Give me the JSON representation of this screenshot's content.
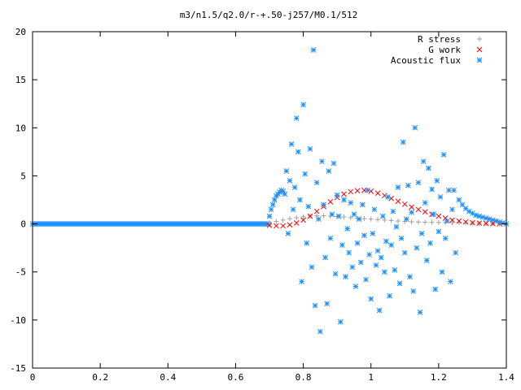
{
  "chart_data": {
    "type": "scatter",
    "title": "m3/n1.5/q2.0/r-+.50-j257/M0.1/512",
    "xlabel": "",
    "ylabel": "",
    "xlim": [
      0,
      1.4
    ],
    "ylim": [
      -15,
      20
    ],
    "x_ticks": [
      "0",
      "0.2",
      "0.4",
      "0.6",
      "0.8",
      "1",
      "1.2",
      "1.4"
    ],
    "y_ticks": [
      "-15",
      "-10",
      "-5",
      "0",
      "5",
      "10",
      "15",
      "20"
    ],
    "grid": false,
    "legend_position": "top-right",
    "series": [
      {
        "name": "R stress",
        "marker": "+",
        "color": "#a0a0a0",
        "x": [
          0.7,
          0.72,
          0.74,
          0.76,
          0.78,
          0.8,
          0.82,
          0.84,
          0.86,
          0.88,
          0.9,
          0.92,
          0.94,
          0.96,
          0.98,
          1.0,
          1.02,
          1.04,
          1.06,
          1.08,
          1.1,
          1.12,
          1.14,
          1.16,
          1.18,
          1.2,
          1.22,
          1.24,
          1.26,
          1.28,
          1.3,
          1.32,
          1.34,
          1.36,
          1.38
        ],
        "y": [
          0.1,
          0.25,
          0.4,
          0.55,
          0.65,
          0.75,
          0.82,
          0.85,
          0.85,
          0.82,
          0.78,
          0.72,
          0.65,
          0.6,
          0.55,
          0.5,
          0.45,
          0.4,
          0.35,
          0.3,
          0.25,
          0.22,
          0.2,
          0.18,
          0.16,
          0.15,
          0.14,
          0.13,
          0.12,
          0.1,
          0.08,
          0.06,
          0.04,
          0.02,
          0.01
        ]
      },
      {
        "name": "G work",
        "marker": "x",
        "color": "#ff0000",
        "x": [
          0.7,
          0.72,
          0.74,
          0.76,
          0.78,
          0.8,
          0.82,
          0.84,
          0.86,
          0.88,
          0.9,
          0.92,
          0.94,
          0.96,
          0.98,
          1.0,
          1.02,
          1.04,
          1.06,
          1.08,
          1.1,
          1.12,
          1.14,
          1.16,
          1.18,
          1.2,
          1.22,
          1.24,
          1.26,
          1.28,
          1.3,
          1.32,
          1.34,
          1.36,
          1.38
        ],
        "y": [
          -0.15,
          -0.2,
          -0.2,
          -0.1,
          0.1,
          0.4,
          0.8,
          1.3,
          1.8,
          2.3,
          2.75,
          3.1,
          3.35,
          3.45,
          3.5,
          3.4,
          3.2,
          2.95,
          2.65,
          2.35,
          2.05,
          1.75,
          1.5,
          1.25,
          1.0,
          0.8,
          0.6,
          0.4,
          0.3,
          0.2,
          0.12,
          0.08,
          0.05,
          0.03,
          0.0
        ]
      },
      {
        "name": "Acoustic flux",
        "marker": "*",
        "color": "#1e90ff",
        "x": [
          0.0,
          0.7,
          0.705,
          0.71,
          0.715,
          0.72,
          0.725,
          0.73,
          0.735,
          0.74,
          0.745,
          0.75,
          0.755,
          0.76,
          0.765,
          0.77,
          0.775,
          0.78,
          0.785,
          0.79,
          0.795,
          0.8,
          0.805,
          0.81,
          0.815,
          0.82,
          0.825,
          0.83,
          0.835,
          0.84,
          0.845,
          0.85,
          0.855,
          0.86,
          0.865,
          0.87,
          0.875,
          0.88,
          0.885,
          0.89,
          0.895,
          0.9,
          0.905,
          0.91,
          0.915,
          0.92,
          0.925,
          0.93,
          0.935,
          0.94,
          0.945,
          0.95,
          0.955,
          0.96,
          0.965,
          0.97,
          0.975,
          0.98,
          0.985,
          0.99,
          0.995,
          1.0,
          1.005,
          1.01,
          1.015,
          1.02,
          1.025,
          1.03,
          1.035,
          1.04,
          1.045,
          1.05,
          1.055,
          1.06,
          1.065,
          1.07,
          1.075,
          1.08,
          1.085,
          1.09,
          1.095,
          1.1,
          1.105,
          1.11,
          1.115,
          1.12,
          1.125,
          1.13,
          1.135,
          1.14,
          1.145,
          1.15,
          1.155,
          1.16,
          1.165,
          1.17,
          1.175,
          1.18,
          1.185,
          1.19,
          1.195,
          1.2,
          1.205,
          1.21,
          1.215,
          1.22,
          1.225,
          1.23,
          1.235,
          1.24,
          1.245,
          1.25,
          1.26,
          1.27,
          1.28,
          1.29,
          1.3,
          1.31,
          1.32,
          1.33,
          1.34,
          1.35,
          1.36,
          1.37,
          1.38,
          1.39,
          1.4
        ],
        "y": [
          0.0,
          0.8,
          1.5,
          2.0,
          2.5,
          2.9,
          3.1,
          3.3,
          3.5,
          3.4,
          3.1,
          5.5,
          -1.0,
          4.5,
          8.3,
          1.5,
          3.8,
          11.0,
          7.5,
          2.5,
          -6.0,
          12.4,
          5.2,
          -2.0,
          1.8,
          7.8,
          -4.5,
          18.1,
          -8.5,
          4.3,
          0.5,
          -11.2,
          6.5,
          2.0,
          -3.5,
          -8.3,
          5.5,
          -1.5,
          1.0,
          6.3,
          -5.2,
          3.0,
          0.8,
          -10.2,
          -2.2,
          2.5,
          -5.5,
          -0.5,
          -3.0,
          2.2,
          -4.5,
          1.0,
          -6.5,
          -2.0,
          0.5,
          -4.0,
          2.0,
          -1.2,
          -5.8,
          3.5,
          -3.2,
          -7.8,
          -1.0,
          1.5,
          -4.3,
          -2.8,
          -9.0,
          -3.5,
          0.8,
          -5.0,
          -1.8,
          2.8,
          -7.5,
          -2.2,
          1.3,
          -4.8,
          -0.3,
          3.8,
          -6.2,
          -1.5,
          8.5,
          -3.0,
          0.5,
          4.0,
          -5.5,
          1.2,
          -7.0,
          10.0,
          -2.5,
          4.3,
          -9.2,
          -1.0,
          6.5,
          2.2,
          -3.8,
          5.8,
          -2.0,
          3.6,
          1.0,
          -6.8,
          4.5,
          -0.8,
          2.8,
          -5.0,
          7.2,
          -1.5,
          0.3,
          3.5,
          -6.0,
          1.5,
          3.5,
          -3.0,
          2.5,
          2.0,
          1.6,
          1.3,
          1.1,
          0.9,
          0.8,
          0.7,
          0.6,
          0.5,
          0.4,
          0.3,
          0.2,
          0.1,
          0.0
        ]
      }
    ]
  }
}
